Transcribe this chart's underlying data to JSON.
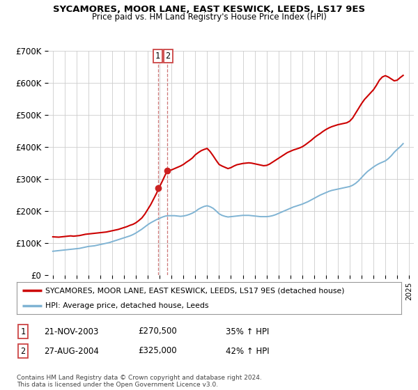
{
  "title": "SYCAMORES, MOOR LANE, EAST KESWICK, LEEDS, LS17 9ES",
  "subtitle": "Price paid vs. HM Land Registry's House Price Index (HPI)",
  "ylim": [
    0,
    700000
  ],
  "yticks": [
    0,
    100000,
    200000,
    300000,
    400000,
    500000,
    600000,
    700000
  ],
  "ytick_labels": [
    "£0",
    "£100K",
    "£200K",
    "£300K",
    "£400K",
    "£500K",
    "£600K",
    "£700K"
  ],
  "xlim_start": 1994.6,
  "xlim_end": 2025.4,
  "background_color": "#ffffff",
  "grid_color": "#cccccc",
  "red_line_color": "#cc0000",
  "blue_line_color": "#7fb3d3",
  "vline_color": "#cc7777",
  "marker_color": "#cc2222",
  "sale1_x": 2003.896,
  "sale1_y": 270500,
  "sale1_label": "1",
  "sale2_x": 2004.648,
  "sale2_y": 325000,
  "sale2_label": "2",
  "legend_red": "SYCAMORES, MOOR LANE, EAST KESWICK, LEEDS, LS17 9ES (detached house)",
  "legend_blue": "HPI: Average price, detached house, Leeds",
  "table_row1": [
    "1",
    "21-NOV-2003",
    "£270,500",
    "35% ↑ HPI"
  ],
  "table_row2": [
    "2",
    "27-AUG-2004",
    "£325,000",
    "42% ↑ HPI"
  ],
  "footnote": "Contains HM Land Registry data © Crown copyright and database right 2024.\nThis data is licensed under the Open Government Licence v3.0.",
  "red_years": [
    1995.0,
    1995.25,
    1995.5,
    1995.75,
    1996.0,
    1996.25,
    1996.5,
    1996.75,
    1997.0,
    1997.25,
    1997.5,
    1997.75,
    1998.0,
    1998.25,
    1998.5,
    1998.75,
    1999.0,
    1999.25,
    1999.5,
    1999.75,
    2000.0,
    2000.25,
    2000.5,
    2000.75,
    2001.0,
    2001.25,
    2001.5,
    2001.75,
    2002.0,
    2002.25,
    2002.5,
    2002.75,
    2003.0,
    2003.25,
    2003.5,
    2003.75,
    2003.896,
    2004.0,
    2004.25,
    2004.5,
    2004.648,
    2005.0,
    2005.25,
    2005.5,
    2005.75,
    2006.0,
    2006.25,
    2006.5,
    2006.75,
    2007.0,
    2007.25,
    2007.5,
    2007.75,
    2008.0,
    2008.25,
    2008.5,
    2008.75,
    2009.0,
    2009.25,
    2009.5,
    2009.75,
    2010.0,
    2010.25,
    2010.5,
    2010.75,
    2011.0,
    2011.25,
    2011.5,
    2011.75,
    2012.0,
    2012.25,
    2012.5,
    2012.75,
    2013.0,
    2013.25,
    2013.5,
    2013.75,
    2014.0,
    2014.25,
    2014.5,
    2014.75,
    2015.0,
    2015.25,
    2015.5,
    2015.75,
    2016.0,
    2016.25,
    2016.5,
    2016.75,
    2017.0,
    2017.25,
    2017.5,
    2017.75,
    2018.0,
    2018.25,
    2018.5,
    2018.75,
    2019.0,
    2019.25,
    2019.5,
    2019.75,
    2020.0,
    2020.25,
    2020.5,
    2020.75,
    2021.0,
    2021.25,
    2021.5,
    2021.75,
    2022.0,
    2022.25,
    2022.5,
    2022.75,
    2023.0,
    2023.25,
    2023.5,
    2023.75,
    2024.0,
    2024.25,
    2024.5
  ],
  "red_values": [
    119000,
    118500,
    118000,
    119000,
    120000,
    121000,
    122000,
    121000,
    122000,
    123000,
    125000,
    127000,
    128000,
    129000,
    130000,
    131000,
    132000,
    133000,
    134000,
    136000,
    138000,
    140000,
    142000,
    145000,
    148000,
    151000,
    155000,
    158000,
    163000,
    170000,
    178000,
    190000,
    205000,
    220000,
    238000,
    256000,
    270500,
    276000,
    295000,
    315000,
    325000,
    328000,
    332000,
    336000,
    340000,
    345000,
    352000,
    358000,
    365000,
    375000,
    382000,
    388000,
    392000,
    395000,
    385000,
    372000,
    358000,
    345000,
    340000,
    336000,
    332000,
    335000,
    340000,
    344000,
    346000,
    348000,
    349000,
    350000,
    349000,
    347000,
    345000,
    343000,
    341000,
    342000,
    346000,
    352000,
    358000,
    364000,
    370000,
    376000,
    382000,
    386000,
    390000,
    393000,
    396000,
    400000,
    406000,
    413000,
    420000,
    428000,
    435000,
    441000,
    448000,
    454000,
    459000,
    463000,
    466000,
    469000,
    471000,
    473000,
    475000,
    480000,
    490000,
    505000,
    520000,
    535000,
    548000,
    558000,
    568000,
    578000,
    592000,
    608000,
    618000,
    622000,
    618000,
    612000,
    606000,
    608000,
    616000,
    623000
  ],
  "blue_years": [
    1995.0,
    1995.25,
    1995.5,
    1995.75,
    1996.0,
    1996.25,
    1996.5,
    1996.75,
    1997.0,
    1997.25,
    1997.5,
    1997.75,
    1998.0,
    1998.25,
    1998.5,
    1998.75,
    1999.0,
    1999.25,
    1999.5,
    1999.75,
    2000.0,
    2000.25,
    2000.5,
    2000.75,
    2001.0,
    2001.25,
    2001.5,
    2001.75,
    2002.0,
    2002.25,
    2002.5,
    2002.75,
    2003.0,
    2003.25,
    2003.5,
    2003.75,
    2004.0,
    2004.25,
    2004.5,
    2004.75,
    2005.0,
    2005.25,
    2005.5,
    2005.75,
    2006.0,
    2006.25,
    2006.5,
    2006.75,
    2007.0,
    2007.25,
    2007.5,
    2007.75,
    2008.0,
    2008.25,
    2008.5,
    2008.75,
    2009.0,
    2009.25,
    2009.5,
    2009.75,
    2010.0,
    2010.25,
    2010.5,
    2010.75,
    2011.0,
    2011.25,
    2011.5,
    2011.75,
    2012.0,
    2012.25,
    2012.5,
    2012.75,
    2013.0,
    2013.25,
    2013.5,
    2013.75,
    2014.0,
    2014.25,
    2014.5,
    2014.75,
    2015.0,
    2015.25,
    2015.5,
    2015.75,
    2016.0,
    2016.25,
    2016.5,
    2016.75,
    2017.0,
    2017.25,
    2017.5,
    2017.75,
    2018.0,
    2018.25,
    2018.5,
    2018.75,
    2019.0,
    2019.25,
    2019.5,
    2019.75,
    2020.0,
    2020.25,
    2020.5,
    2020.75,
    2021.0,
    2021.25,
    2021.5,
    2021.75,
    2022.0,
    2022.25,
    2022.5,
    2022.75,
    2023.0,
    2023.25,
    2023.5,
    2023.75,
    2024.0,
    2024.25,
    2024.5
  ],
  "blue_values": [
    74000,
    75000,
    76000,
    77000,
    78000,
    79000,
    80000,
    81000,
    82000,
    83000,
    85000,
    87000,
    89000,
    90000,
    91000,
    93000,
    95000,
    97000,
    99000,
    101000,
    104000,
    107000,
    110000,
    113000,
    116000,
    119000,
    122000,
    126000,
    131000,
    137000,
    143000,
    150000,
    157000,
    163000,
    168000,
    173000,
    177000,
    181000,
    184000,
    185000,
    185000,
    185000,
    184000,
    183000,
    184000,
    186000,
    189000,
    193000,
    198000,
    205000,
    210000,
    214000,
    216000,
    213000,
    208000,
    200000,
    191000,
    186000,
    183000,
    181000,
    182000,
    183000,
    184000,
    185000,
    186000,
    186000,
    186000,
    185000,
    184000,
    183000,
    182000,
    182000,
    182000,
    183000,
    185000,
    188000,
    192000,
    196000,
    200000,
    204000,
    208000,
    212000,
    215000,
    218000,
    221000,
    225000,
    229000,
    234000,
    239000,
    244000,
    249000,
    253000,
    257000,
    261000,
    264000,
    266000,
    268000,
    270000,
    272000,
    274000,
    276000,
    280000,
    286000,
    294000,
    304000,
    314000,
    323000,
    330000,
    337000,
    343000,
    348000,
    352000,
    356000,
    363000,
    372000,
    383000,
    392000,
    400000,
    410000
  ]
}
